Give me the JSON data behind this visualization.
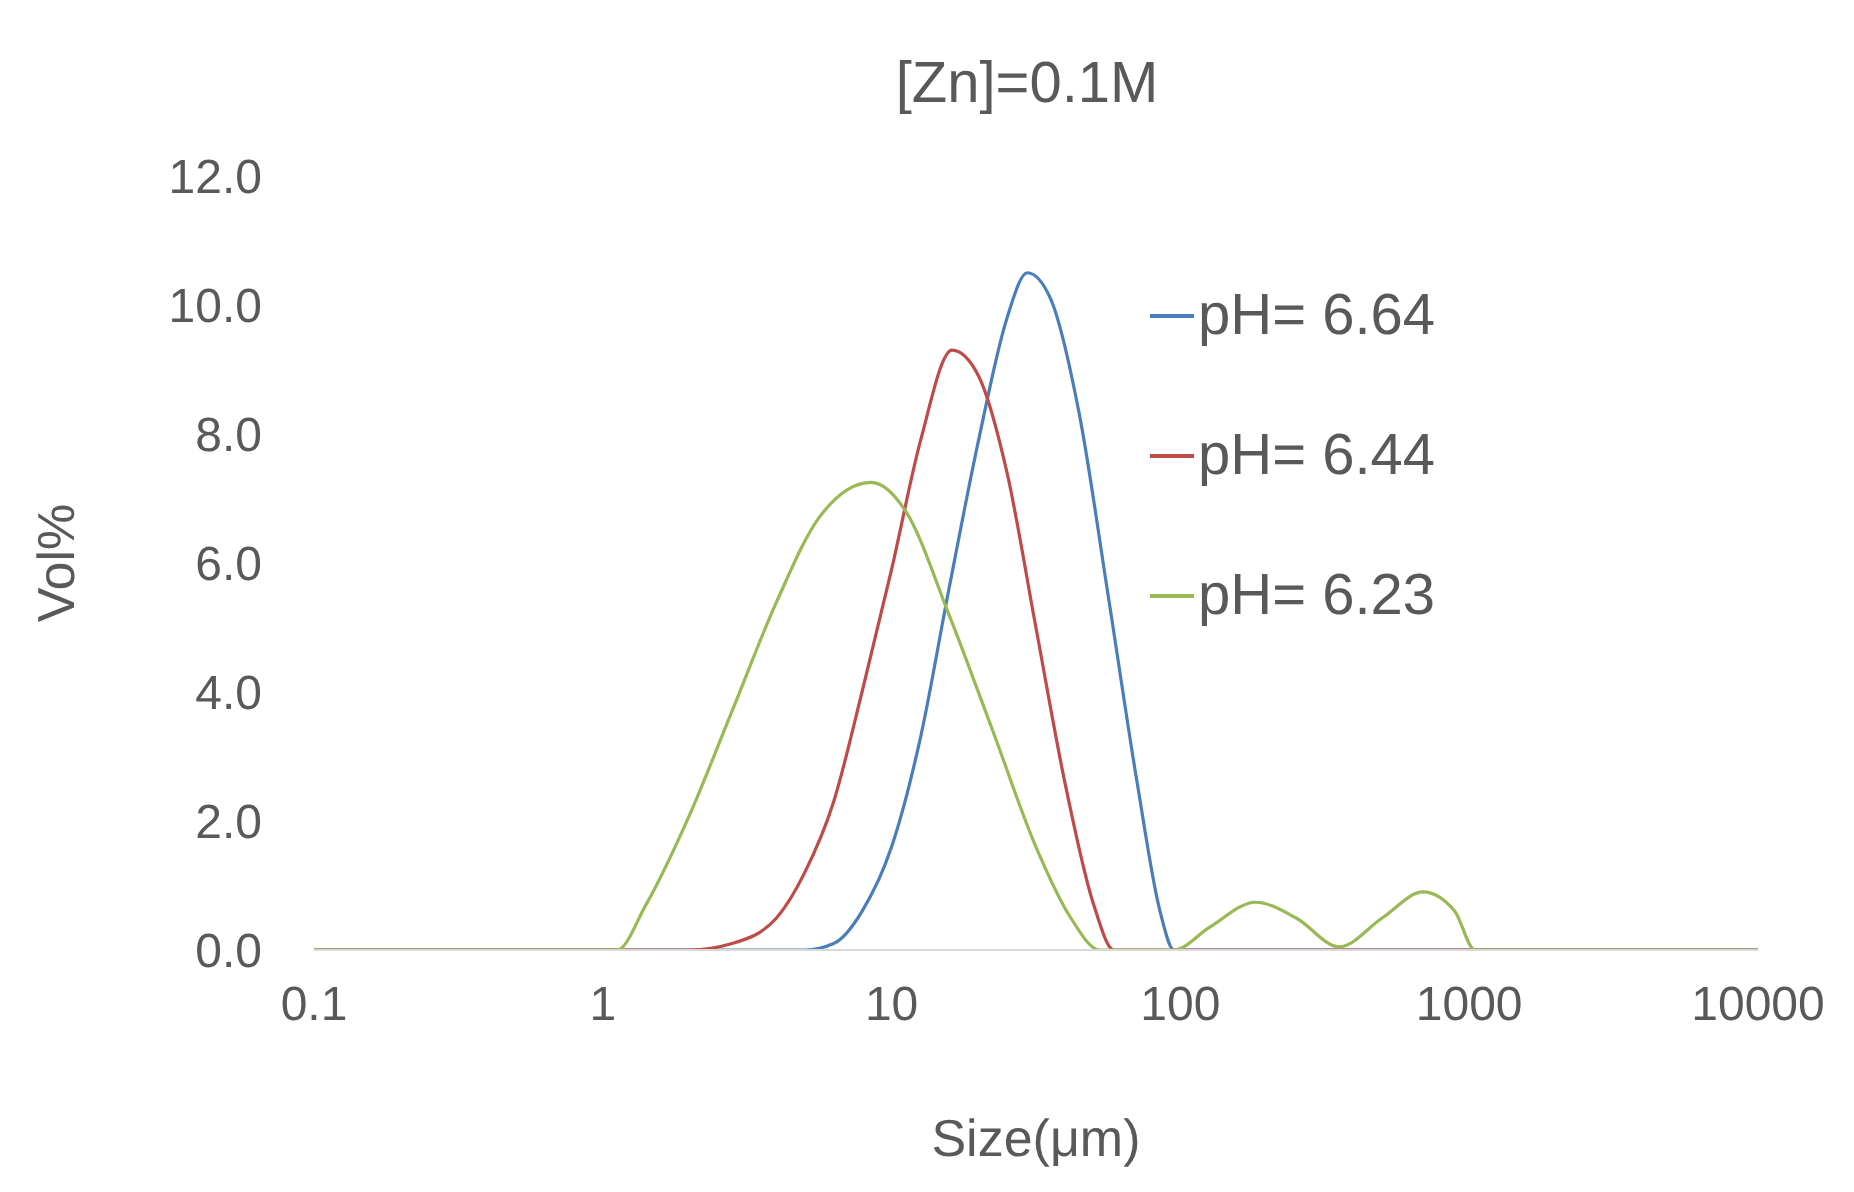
{
  "chart_data": {
    "type": "line",
    "title": "[Zn]=0.1M",
    "xlabel": "Size(μm)",
    "ylabel": "Vol%",
    "log": "x",
    "xlim": [
      0.1,
      10000
    ],
    "xticks": [
      0.1,
      1,
      10,
      100,
      1000,
      10000
    ],
    "ylim": [
      0,
      12
    ],
    "yticks": [
      {
        "value": 0,
        "label": "0.0"
      },
      {
        "value": 2,
        "label": "2.0"
      },
      {
        "value": 4,
        "label": "4.0"
      },
      {
        "value": 6,
        "label": "6.0"
      },
      {
        "value": 8,
        "label": "8.0"
      },
      {
        "value": 10,
        "label": "10.0"
      },
      {
        "value": 12,
        "label": "12.0"
      }
    ],
    "grid": false,
    "legend": "top right",
    "marker": "none",
    "line_style": "solid",
    "series": [
      {
        "name": "pH= 6.64",
        "color": "#4a7ebb",
        "x": [
          0.1,
          5.0,
          6.3,
          7.9,
          10,
          12.6,
          15.8,
          20,
          25.1,
          29.5,
          35.5,
          44.7,
          56.2,
          70.8,
          85,
          95,
          10000
        ],
        "values": [
          0,
          0,
          0.1,
          0.6,
          1.6,
          3.3,
          5.6,
          7.9,
          9.8,
          10.5,
          10.1,
          8.3,
          5.5,
          2.6,
          0.6,
          0,
          0
        ]
      },
      {
        "name": "pH= 6.44",
        "color": "#be4b48",
        "x": [
          0.1,
          2.0,
          2.8,
          4.0,
          5.0,
          6.3,
          7.9,
          10,
          12.6,
          16.2,
          20,
          25.1,
          31.6,
          39.8,
          50.1,
          58.9,
          10000
        ],
        "values": [
          0,
          0,
          0.1,
          0.5,
          1.2,
          2.3,
          4.0,
          5.9,
          7.9,
          9.3,
          8.9,
          7.4,
          5.0,
          2.6,
          0.7,
          0,
          0
        ]
      },
      {
        "name": "pH= 6.23",
        "color": "#98b954",
        "x": [
          0.1,
          1.12,
          1.41,
          2.0,
          2.8,
          4.0,
          5.6,
          8.5,
          11.2,
          15.8,
          22.4,
          31.6,
          41.7,
          52.5,
          95,
          126,
          182,
          251,
          355,
          501,
          692,
          891,
          1047,
          10000
        ],
        "values": [
          0,
          0,
          0.7,
          2.1,
          3.7,
          5.4,
          6.7,
          7.25,
          6.8,
          5.2,
          3.4,
          1.6,
          0.5,
          0,
          0,
          0.35,
          0.74,
          0.5,
          0.05,
          0.5,
          0.9,
          0.6,
          0,
          0
        ]
      }
    ]
  }
}
